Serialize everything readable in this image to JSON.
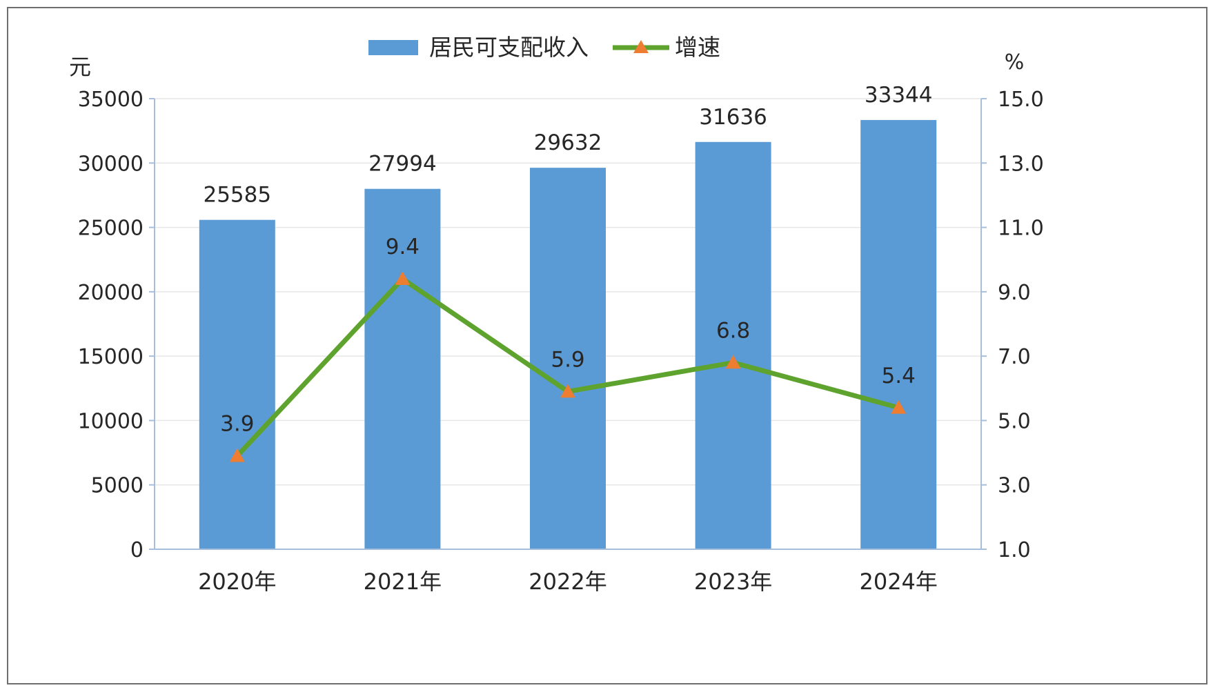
{
  "chart_data": {
    "type": "bar",
    "categories": [
      "2020年",
      "2021年",
      "2022年",
      "2023年",
      "2024年"
    ],
    "series": [
      {
        "name": "居民可支配收入",
        "type": "bar",
        "axis": "left",
        "values": [
          25585,
          27994,
          29632,
          31636,
          33344
        ]
      },
      {
        "name": "增速",
        "type": "line",
        "axis": "right",
        "marker": "triangle",
        "values": [
          3.9,
          9.4,
          5.9,
          6.8,
          5.4
        ]
      }
    ],
    "left_axis": {
      "unit": "元",
      "range": [
        0,
        35000
      ],
      "ticks": [
        "0",
        "5000",
        "10000",
        "15000",
        "20000",
        "25000",
        "30000",
        "35000"
      ]
    },
    "right_axis": {
      "unit": "%",
      "range": [
        1.0,
        15.0
      ],
      "ticks": [
        "1.0",
        "3.0",
        "5.0",
        "7.0",
        "9.0",
        "11.0",
        "13.0",
        "15.0"
      ]
    },
    "bar_labels": [
      "25585",
      "27994",
      "29632",
      "31636",
      "33344"
    ],
    "line_labels": [
      "3.9",
      "9.4",
      "5.9",
      "6.8",
      "5.4"
    ],
    "legend": {
      "placement": "top-center"
    },
    "grid": true,
    "colors": {
      "bar": "#5b9bd5",
      "line": "#5ea32d",
      "marker": "#ed7d31",
      "axis": "#a6bddb",
      "grid": "#e6e6e6"
    }
  }
}
